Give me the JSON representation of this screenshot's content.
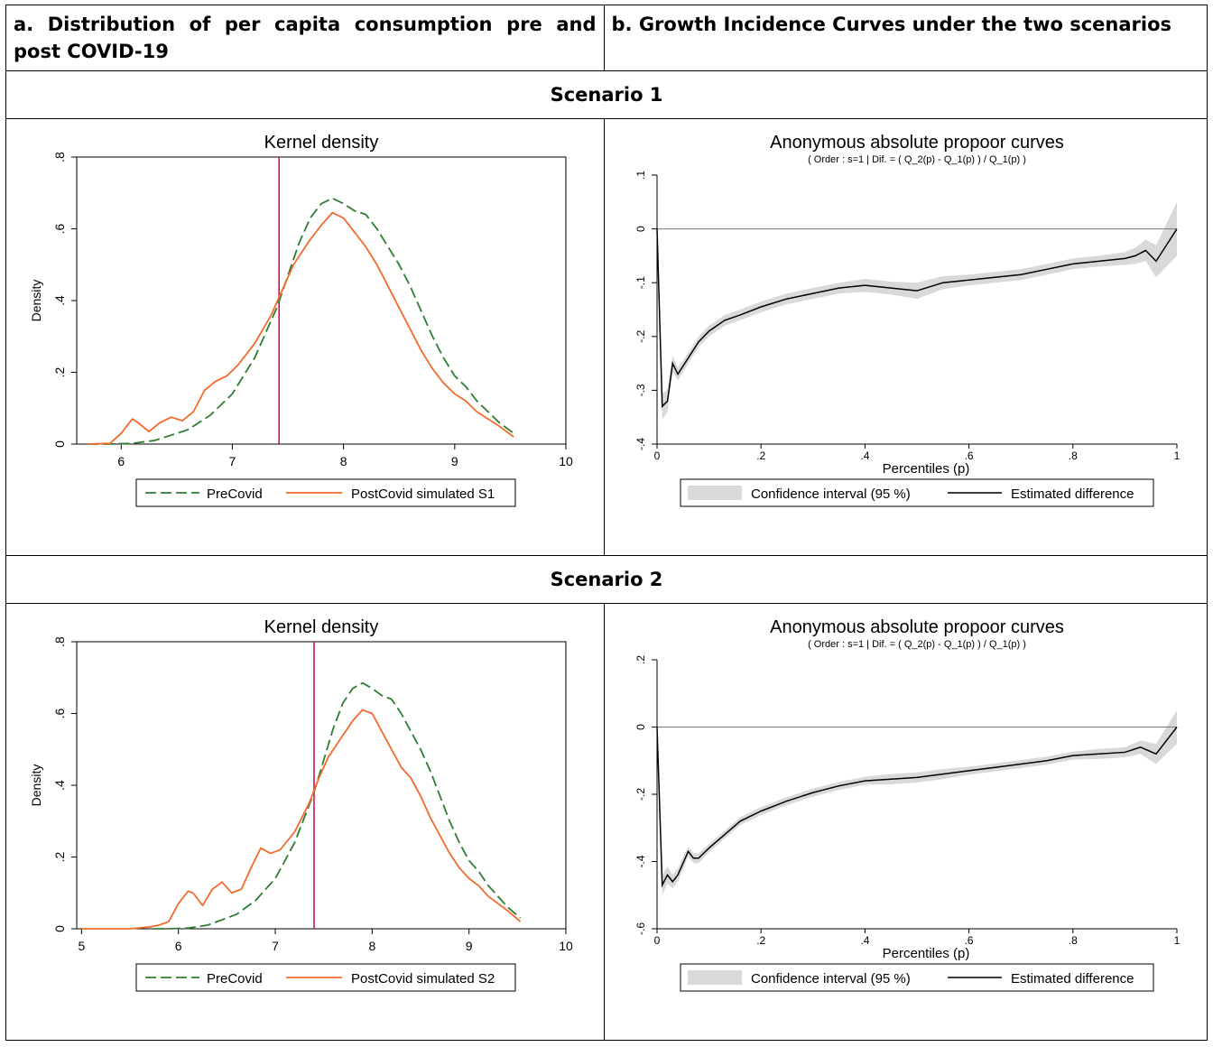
{
  "headers": {
    "a": "a. Distribution of per capita consumption pre and post COVID-19",
    "b": "b. Growth Incidence Curves under the two scenarios"
  },
  "scenarios": [
    {
      "label": "Scenario 1"
    },
    {
      "label": "Scenario 2"
    }
  ],
  "colors": {
    "precovid": "#2e7d32",
    "postcovid": "#f26a2c",
    "vline": "#d1105a",
    "ci": "#d9d9d9",
    "diff": "#000000"
  },
  "chart_data": [
    {
      "id": "s1-density",
      "type": "line",
      "title": "Kernel density",
      "ylabel": "Density",
      "xlim": [
        5.6,
        10
      ],
      "ylim": [
        0,
        0.8
      ],
      "xticks": [
        6,
        7,
        8,
        9,
        10
      ],
      "yticks": [
        0,
        0.2,
        0.4,
        0.6,
        0.8
      ],
      "ytick_labels": [
        "0",
        ".2",
        ".4",
        ".6",
        ".8"
      ],
      "vline": 7.42,
      "legend": [
        "PreCovid",
        "PostCovid simulated S1"
      ],
      "series": [
        {
          "name": "PreCovid",
          "x": [
            5.7,
            5.9,
            6.1,
            6.3,
            6.5,
            6.6,
            6.8,
            7.0,
            7.2,
            7.4,
            7.5,
            7.6,
            7.7,
            7.8,
            7.9,
            8.0,
            8.1,
            8.2,
            8.3,
            8.4,
            8.5,
            8.6,
            8.7,
            8.8,
            8.9,
            9.0,
            9.1,
            9.2,
            9.3,
            9.4,
            9.53
          ],
          "y": [
            0,
            0,
            0.002,
            0.01,
            0.03,
            0.04,
            0.08,
            0.14,
            0.24,
            0.38,
            0.47,
            0.56,
            0.63,
            0.67,
            0.685,
            0.67,
            0.65,
            0.64,
            0.6,
            0.55,
            0.5,
            0.44,
            0.37,
            0.3,
            0.24,
            0.19,
            0.16,
            0.12,
            0.09,
            0.06,
            0.03
          ]
        },
        {
          "name": "PostCovid simulated S1",
          "x": [
            5.7,
            5.9,
            6.0,
            6.1,
            6.15,
            6.25,
            6.35,
            6.45,
            6.55,
            6.65,
            6.75,
            6.85,
            6.95,
            7.05,
            7.2,
            7.35,
            7.45,
            7.55,
            7.7,
            7.8,
            7.9,
            8.0,
            8.1,
            8.2,
            8.3,
            8.4,
            8.5,
            8.6,
            8.7,
            8.8,
            8.9,
            9.0,
            9.1,
            9.2,
            9.3,
            9.4,
            9.53
          ],
          "y": [
            0,
            0.002,
            0.03,
            0.07,
            0.06,
            0.035,
            0.06,
            0.075,
            0.065,
            0.09,
            0.15,
            0.175,
            0.19,
            0.22,
            0.28,
            0.36,
            0.43,
            0.5,
            0.57,
            0.61,
            0.645,
            0.63,
            0.59,
            0.55,
            0.5,
            0.44,
            0.38,
            0.32,
            0.26,
            0.21,
            0.17,
            0.14,
            0.12,
            0.09,
            0.07,
            0.05,
            0.02
          ]
        }
      ]
    },
    {
      "id": "s1-gic",
      "type": "area",
      "title": "Anonymous absolute propoor curves",
      "subtitle": "( Order : s=1 | Dif. = ( Q_2(p) - Q_1(p) ) / Q_1(p) )",
      "xlabel": "Percentiles (p)",
      "xlim": [
        0,
        1
      ],
      "ylim": [
        -0.4,
        0.1
      ],
      "xticks": [
        0,
        0.2,
        0.4,
        0.6,
        0.8,
        1
      ],
      "xtick_labels": [
        "0",
        ".2",
        ".4",
        ".6",
        ".8",
        "1"
      ],
      "yticks": [
        -0.4,
        -0.3,
        -0.2,
        -0.1,
        0,
        0.1
      ],
      "ytick_labels": [
        "-.4",
        "-.3",
        "-.2",
        "-.1",
        "0",
        ".1"
      ],
      "hline": 0,
      "legend": [
        "Confidence interval (95 %)",
        "Estimated difference"
      ],
      "series": [
        {
          "name": "Estimated difference",
          "x": [
            0,
            0.01,
            0.02,
            0.03,
            0.04,
            0.06,
            0.08,
            0.1,
            0.13,
            0.16,
            0.2,
            0.25,
            0.3,
            0.35,
            0.4,
            0.45,
            0.5,
            0.55,
            0.6,
            0.65,
            0.7,
            0.75,
            0.8,
            0.85,
            0.9,
            0.92,
            0.94,
            0.96,
            0.98,
            1.0
          ],
          "y": [
            0,
            -0.33,
            -0.32,
            -0.25,
            -0.27,
            -0.24,
            -0.21,
            -0.19,
            -0.17,
            -0.16,
            -0.145,
            -0.13,
            -0.12,
            -0.11,
            -0.105,
            -0.11,
            -0.115,
            -0.1,
            -0.095,
            -0.09,
            -0.085,
            -0.075,
            -0.065,
            -0.06,
            -0.055,
            -0.05,
            -0.04,
            -0.06,
            -0.03,
            0
          ]
        }
      ],
      "ci_halfwidth": [
        0.01,
        0.025,
        0.02,
        0.015,
        0.012,
        0.01,
        0.01,
        0.01,
        0.01,
        0.01,
        0.01,
        0.01,
        0.01,
        0.01,
        0.012,
        0.012,
        0.015,
        0.012,
        0.01,
        0.01,
        0.01,
        0.01,
        0.01,
        0.01,
        0.012,
        0.015,
        0.02,
        0.03,
        0.04,
        0.05
      ]
    },
    {
      "id": "s2-density",
      "type": "line",
      "title": "Kernel density",
      "ylabel": "Density",
      "xlim": [
        4.95,
        10
      ],
      "ylim": [
        0,
        0.8
      ],
      "xticks": [
        5,
        6,
        7,
        8,
        9,
        10
      ],
      "yticks": [
        0,
        0.2,
        0.4,
        0.6,
        0.8
      ],
      "ytick_labels": [
        "0",
        ".2",
        ".4",
        ".6",
        ".8"
      ],
      "vline": 7.4,
      "legend": [
        "PreCovid",
        "PostCovid simulated S2"
      ],
      "series": [
        {
          "name": "PreCovid",
          "x": [
            5.75,
            5.9,
            6.1,
            6.3,
            6.5,
            6.6,
            6.8,
            7.0,
            7.2,
            7.4,
            7.5,
            7.6,
            7.7,
            7.8,
            7.9,
            8.0,
            8.1,
            8.2,
            8.3,
            8.4,
            8.5,
            8.6,
            8.7,
            8.8,
            8.9,
            9.0,
            9.1,
            9.2,
            9.3,
            9.4,
            9.53
          ],
          "y": [
            0,
            0,
            0.002,
            0.01,
            0.03,
            0.04,
            0.08,
            0.14,
            0.24,
            0.38,
            0.47,
            0.56,
            0.63,
            0.67,
            0.685,
            0.67,
            0.65,
            0.64,
            0.6,
            0.55,
            0.5,
            0.44,
            0.37,
            0.3,
            0.24,
            0.19,
            0.16,
            0.12,
            0.09,
            0.06,
            0.03
          ]
        },
        {
          "name": "PostCovid simulated S2",
          "x": [
            5.0,
            5.5,
            5.7,
            5.8,
            5.9,
            6.0,
            6.1,
            6.15,
            6.25,
            6.35,
            6.45,
            6.55,
            6.65,
            6.75,
            6.85,
            6.95,
            7.05,
            7.2,
            7.35,
            7.45,
            7.55,
            7.7,
            7.8,
            7.9,
            8.0,
            8.1,
            8.2,
            8.3,
            8.4,
            8.5,
            8.6,
            8.7,
            8.8,
            8.9,
            9.0,
            9.1,
            9.2,
            9.3,
            9.4,
            9.53
          ],
          "y": [
            0,
            0,
            0.005,
            0.01,
            0.02,
            0.07,
            0.105,
            0.1,
            0.065,
            0.11,
            0.13,
            0.1,
            0.11,
            0.17,
            0.225,
            0.21,
            0.22,
            0.27,
            0.35,
            0.42,
            0.48,
            0.54,
            0.58,
            0.61,
            0.6,
            0.55,
            0.5,
            0.45,
            0.42,
            0.37,
            0.31,
            0.26,
            0.21,
            0.17,
            0.14,
            0.12,
            0.09,
            0.07,
            0.05,
            0.02
          ]
        }
      ]
    },
    {
      "id": "s2-gic",
      "type": "area",
      "title": "Anonymous absolute propoor curves",
      "subtitle": "( Order : s=1 | Dif. = ( Q_2(p) - Q_1(p) ) / Q_1(p) )",
      "xlabel": "Percentiles (p)",
      "xlim": [
        0,
        1
      ],
      "ylim": [
        -0.6,
        0.2
      ],
      "xticks": [
        0,
        0.2,
        0.4,
        0.6,
        0.8,
        1
      ],
      "xtick_labels": [
        "0",
        ".2",
        ".4",
        ".6",
        ".8",
        "1"
      ],
      "yticks": [
        -0.6,
        -0.4,
        -0.2,
        0,
        0.2
      ],
      "ytick_labels": [
        "-.6",
        "-.4",
        "-.2",
        "0",
        ".2"
      ],
      "hline": 0,
      "legend": [
        "Confidence interval (95 %)",
        "Estimated difference"
      ],
      "series": [
        {
          "name": "Estimated difference",
          "x": [
            0,
            0.01,
            0.02,
            0.03,
            0.04,
            0.06,
            0.07,
            0.08,
            0.1,
            0.13,
            0.16,
            0.2,
            0.25,
            0.3,
            0.35,
            0.4,
            0.45,
            0.5,
            0.55,
            0.6,
            0.65,
            0.7,
            0.75,
            0.8,
            0.85,
            0.9,
            0.93,
            0.96,
            0.98,
            1.0
          ],
          "y": [
            0,
            -0.47,
            -0.44,
            -0.46,
            -0.44,
            -0.37,
            -0.39,
            -0.39,
            -0.36,
            -0.32,
            -0.28,
            -0.25,
            -0.22,
            -0.195,
            -0.175,
            -0.16,
            -0.155,
            -0.15,
            -0.14,
            -0.13,
            -0.12,
            -0.11,
            -0.1,
            -0.085,
            -0.08,
            -0.075,
            -0.06,
            -0.08,
            -0.04,
            0
          ]
        }
      ],
      "ci_halfwidth": [
        0.01,
        0.03,
        0.025,
        0.02,
        0.02,
        0.015,
        0.015,
        0.015,
        0.012,
        0.012,
        0.012,
        0.012,
        0.012,
        0.012,
        0.012,
        0.012,
        0.015,
        0.015,
        0.015,
        0.012,
        0.012,
        0.012,
        0.012,
        0.012,
        0.015,
        0.015,
        0.02,
        0.03,
        0.04,
        0.05
      ]
    }
  ]
}
